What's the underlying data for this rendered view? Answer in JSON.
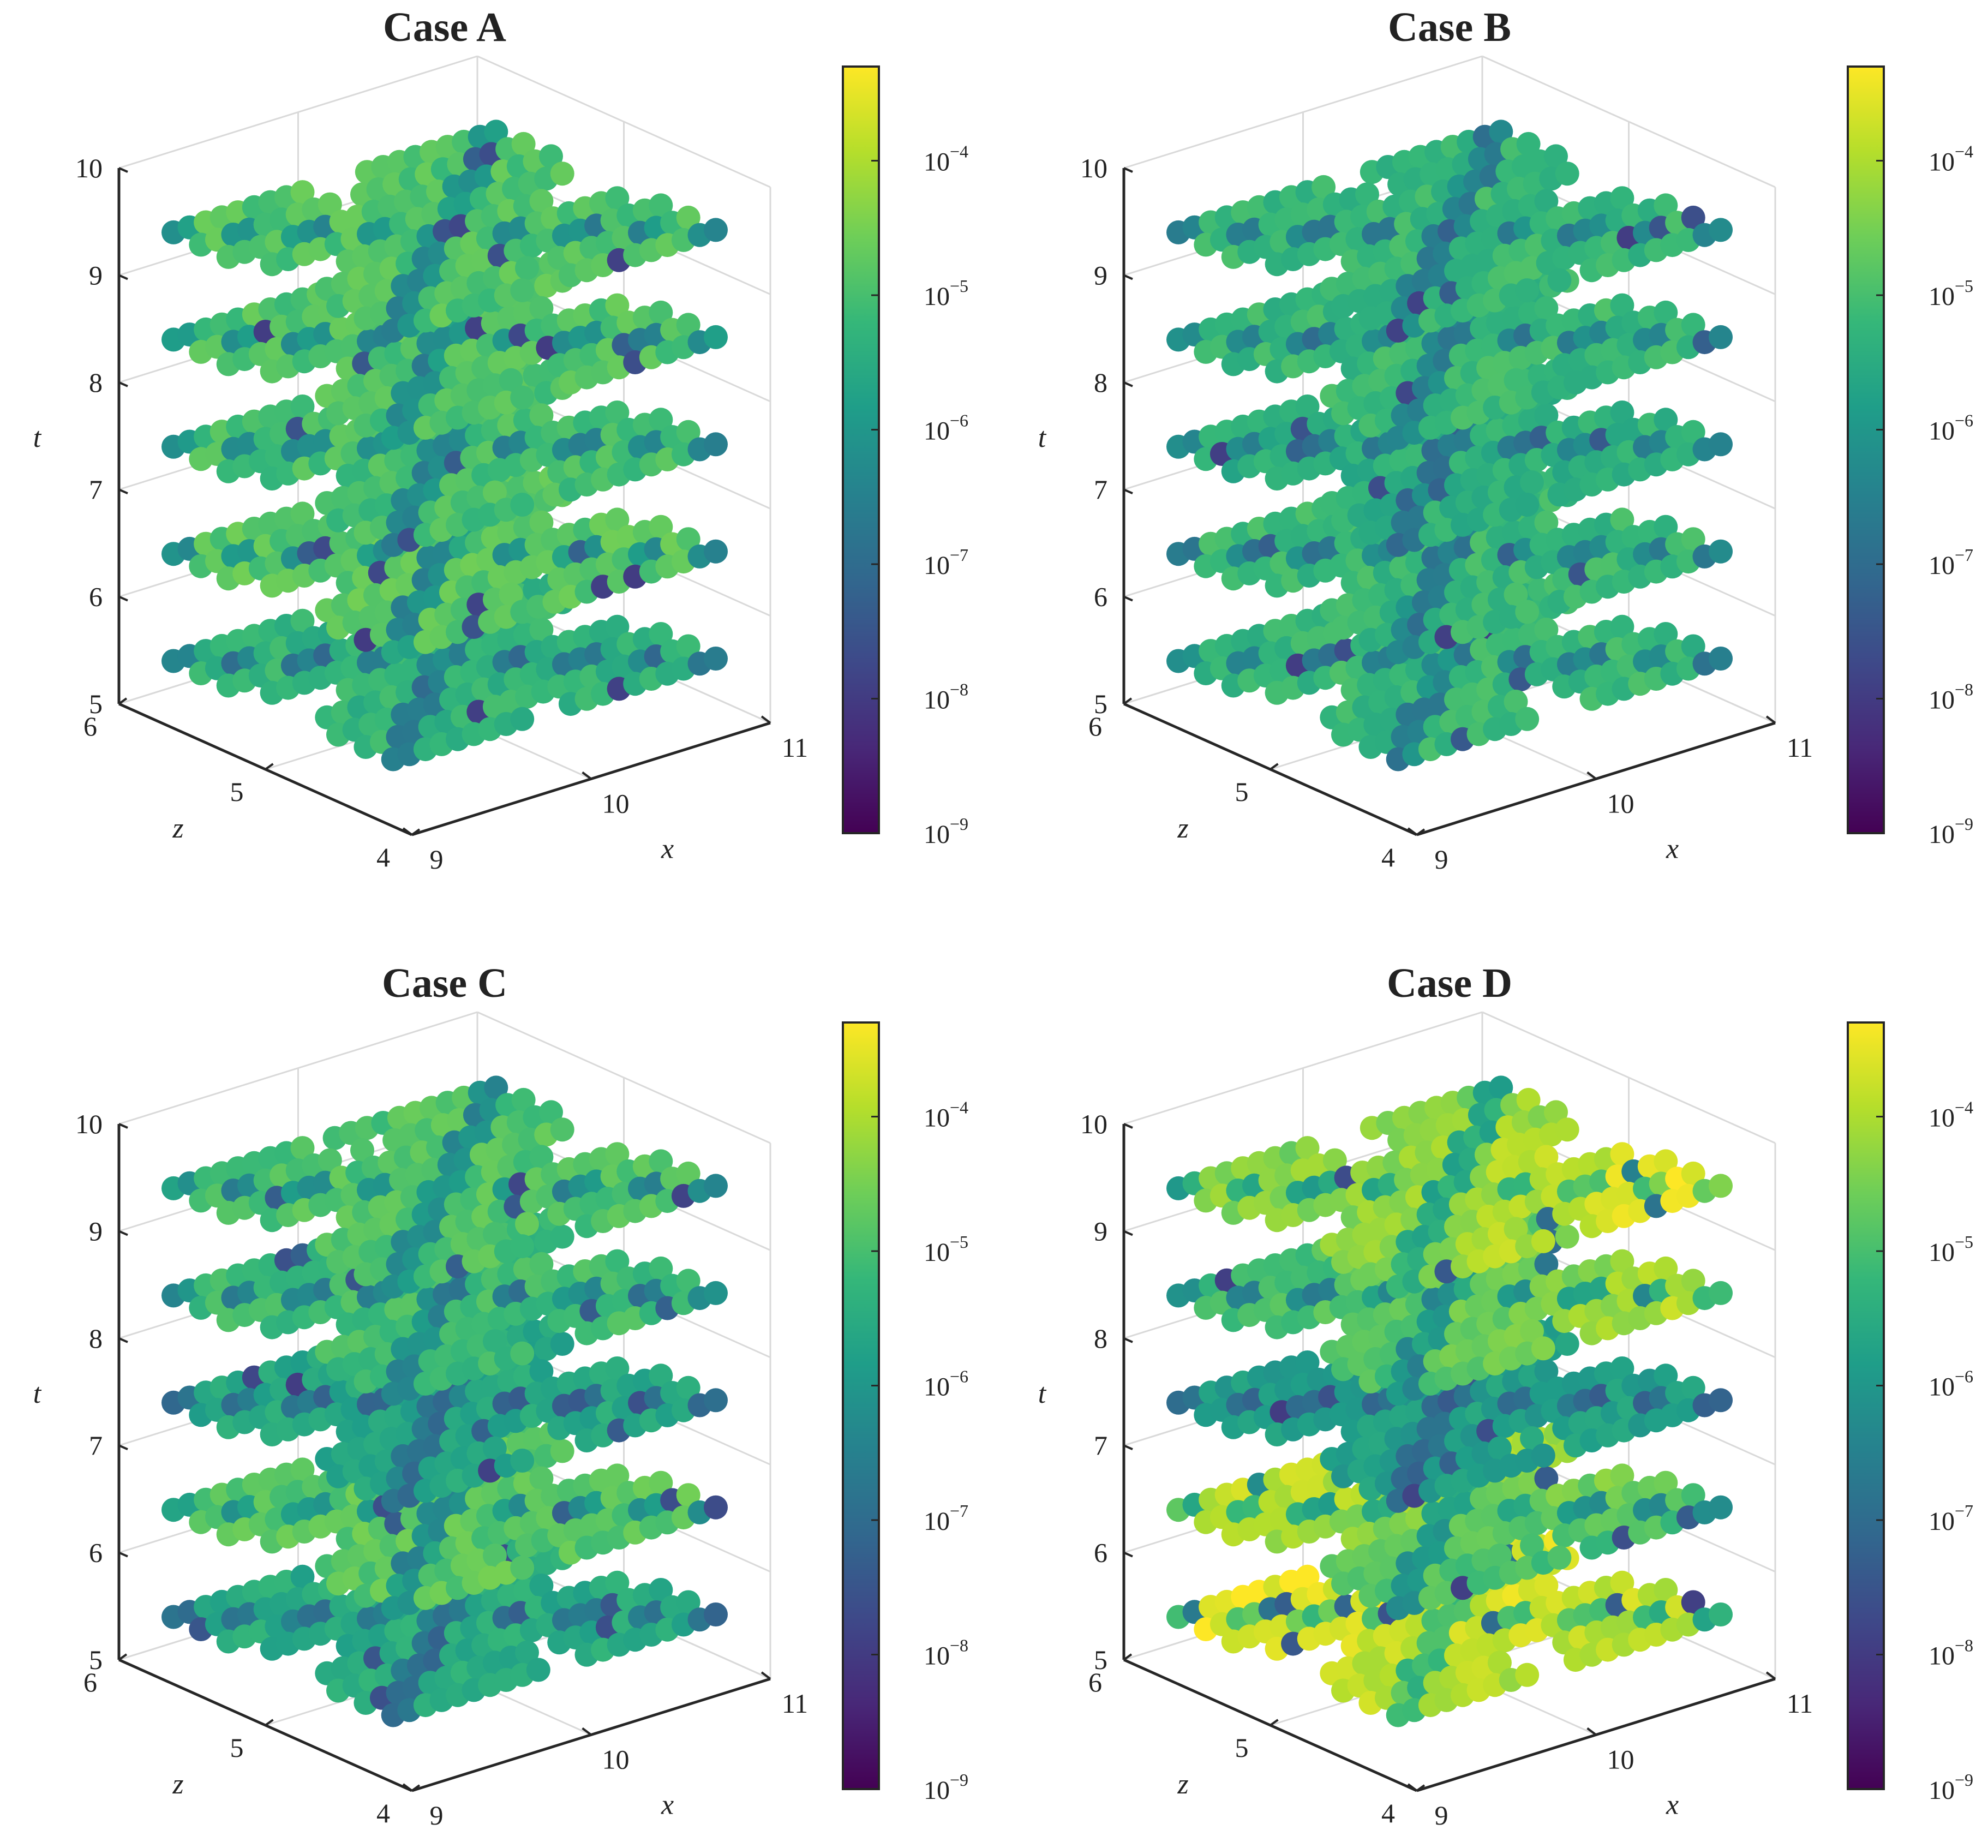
{
  "figure": {
    "description_free": true
  },
  "chart_data": [
    {
      "type": "scatter",
      "title": "Case A",
      "xlabel": "x",
      "ylabel": "z",
      "zlabel": "t",
      "xlim": [
        9,
        11
      ],
      "ylim": [
        4,
        6
      ],
      "tlim": [
        5,
        10
      ],
      "xticks": [
        "9",
        "10",
        "11"
      ],
      "zticks": [
        "4",
        "5",
        "6"
      ],
      "tticks": [
        "5",
        "6",
        "7",
        "8",
        "9",
        "10"
      ],
      "time_slices": [
        5.5,
        6.5,
        7.5,
        8.5,
        9.5
      ],
      "slice_log_error": [
        -5.3,
        -4.8,
        -5.0,
        -4.9,
        -4.9
      ],
      "colorbar": {
        "colormap": "viridis",
        "scale": "log",
        "range_exp": [
          -9,
          -3.3
        ],
        "tick_exps": [
          "-9",
          "-8",
          "-7",
          "-6",
          "-5",
          "-4"
        ],
        "tick_base": "10"
      }
    },
    {
      "type": "scatter",
      "title": "Case B",
      "xlabel": "x",
      "ylabel": "z",
      "zlabel": "t",
      "xlim": [
        9,
        11
      ],
      "ylim": [
        4,
        6
      ],
      "tlim": [
        5,
        10
      ],
      "xticks": [
        "9",
        "10",
        "11"
      ],
      "zticks": [
        "4",
        "5",
        "6"
      ],
      "tticks": [
        "5",
        "6",
        "7",
        "8",
        "9",
        "10"
      ],
      "time_slices": [
        5.5,
        6.5,
        7.5,
        8.5,
        9.5
      ],
      "slice_log_error": [
        -5.2,
        -5.2,
        -5.4,
        -5.2,
        -5.2
      ],
      "colorbar": {
        "colormap": "viridis",
        "scale": "log",
        "range_exp": [
          -9,
          -3.3
        ],
        "tick_exps": [
          "-9",
          "-8",
          "-7",
          "-6",
          "-5",
          "-4"
        ],
        "tick_base": "10"
      }
    },
    {
      "type": "scatter",
      "title": "Case C",
      "xlabel": "x",
      "ylabel": "z",
      "zlabel": "t",
      "xlim": [
        9,
        11
      ],
      "ylim": [
        4,
        6
      ],
      "tlim": [
        5,
        10
      ],
      "xticks": [
        "9",
        "10",
        "11"
      ],
      "zticks": [
        "4",
        "5",
        "6"
      ],
      "tticks": [
        "5",
        "6",
        "7",
        "8",
        "9",
        "10"
      ],
      "time_slices": [
        5.5,
        6.5,
        7.5,
        8.5,
        9.5
      ],
      "slice_log_error": [
        -5.5,
        -4.8,
        -5.6,
        -5.1,
        -4.9
      ],
      "colorbar": {
        "colormap": "viridis",
        "scale": "log",
        "range_exp": [
          -9,
          -3.3
        ],
        "tick_exps": [
          "-9",
          "-8",
          "-7",
          "-6",
          "-5",
          "-4"
        ],
        "tick_base": "10"
      }
    },
    {
      "type": "scatter",
      "title": "Case D",
      "xlabel": "x",
      "ylabel": "z",
      "zlabel": "t",
      "xlim": [
        9,
        11
      ],
      "ylim": [
        4,
        6
      ],
      "tlim": [
        5,
        10
      ],
      "xticks": [
        "9",
        "10",
        "11"
      ],
      "zticks": [
        "4",
        "5",
        "6"
      ],
      "tticks": [
        "5",
        "6",
        "7",
        "8",
        "9",
        "10"
      ],
      "time_slices": [
        5.5,
        6.5,
        7.5,
        8.5,
        9.5
      ],
      "slice_log_error": [
        -4.0,
        -5.0,
        -5.8,
        -5.0,
        -4.4
      ],
      "slice_peak_log_error": [
        -3.5,
        -4.0,
        -6.0,
        -4.0,
        -3.5
      ],
      "colorbar": {
        "colormap": "viridis",
        "scale": "log",
        "range_exp": [
          -9,
          -3.3
        ],
        "tick_exps": [
          "-9",
          "-8",
          "-7",
          "-6",
          "-5",
          "-4"
        ],
        "tick_base": "10"
      }
    }
  ]
}
